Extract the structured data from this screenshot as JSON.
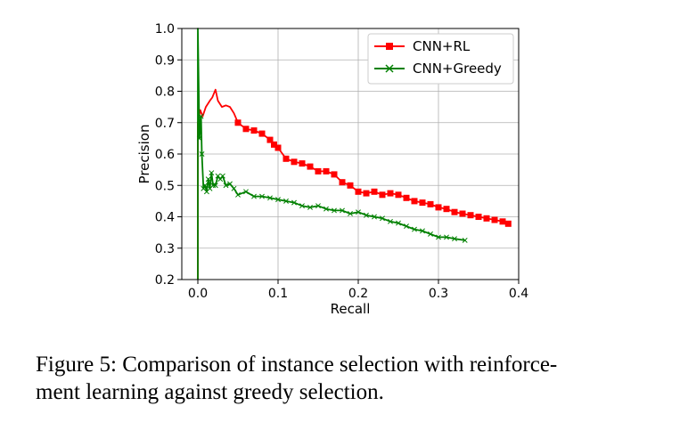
{
  "chart_data": {
    "type": "line",
    "title": "",
    "xlabel": "Recall",
    "ylabel": "Precision",
    "xlim": [
      -0.02,
      0.4
    ],
    "ylim": [
      0.2,
      1.0
    ],
    "xticks": [
      0.0,
      0.1,
      0.2,
      0.3,
      0.4
    ],
    "xtick_labels": [
      "0.0",
      "0.1",
      "0.2",
      "0.3",
      "0.4"
    ],
    "yticks": [
      0.2,
      0.3,
      0.4,
      0.5,
      0.6,
      0.7,
      0.8,
      0.9,
      1.0
    ],
    "ytick_labels": [
      "0.2",
      "0.3",
      "0.4",
      "0.5",
      "0.6",
      "0.7",
      "0.8",
      "0.9",
      "1.0"
    ],
    "grid": true,
    "legend_position": "top-right",
    "series": [
      {
        "name": "CNN+RL",
        "color": "#ff0000",
        "marker": "square",
        "x": [
          0.0,
          0.0,
          0.003,
          0.006,
          0.01,
          0.015,
          0.018,
          0.022,
          0.025,
          0.03,
          0.035,
          0.04,
          0.045,
          0.05,
          0.06,
          0.07,
          0.08,
          0.09,
          0.095,
          0.1,
          0.11,
          0.12,
          0.13,
          0.14,
          0.15,
          0.16,
          0.17,
          0.18,
          0.19,
          0.2,
          0.21,
          0.22,
          0.23,
          0.24,
          0.25,
          0.26,
          0.27,
          0.28,
          0.29,
          0.3,
          0.31,
          0.32,
          0.33,
          0.34,
          0.35,
          0.36,
          0.37,
          0.38,
          0.387
        ],
        "y": [
          0.2,
          0.7,
          0.74,
          0.72,
          0.75,
          0.77,
          0.78,
          0.805,
          0.77,
          0.75,
          0.755,
          0.75,
          0.73,
          0.7,
          0.68,
          0.675,
          0.665,
          0.645,
          0.63,
          0.62,
          0.585,
          0.575,
          0.57,
          0.56,
          0.545,
          0.545,
          0.535,
          0.51,
          0.5,
          0.48,
          0.475,
          0.48,
          0.47,
          0.475,
          0.47,
          0.46,
          0.45,
          0.445,
          0.44,
          0.43,
          0.425,
          0.415,
          0.41,
          0.405,
          0.4,
          0.395,
          0.39,
          0.385,
          0.378
        ]
      },
      {
        "name": "CNN+Greedy",
        "color": "#008000",
        "marker": "x",
        "x": [
          0.0,
          0.0,
          0.002,
          0.004,
          0.005,
          0.007,
          0.009,
          0.011,
          0.013,
          0.015,
          0.017,
          0.019,
          0.022,
          0.025,
          0.028,
          0.031,
          0.035,
          0.04,
          0.045,
          0.05,
          0.06,
          0.07,
          0.08,
          0.09,
          0.1,
          0.11,
          0.12,
          0.13,
          0.14,
          0.15,
          0.16,
          0.17,
          0.18,
          0.19,
          0.2,
          0.21,
          0.22,
          0.23,
          0.24,
          0.25,
          0.26,
          0.27,
          0.28,
          0.29,
          0.3,
          0.31,
          0.32,
          0.333
        ],
        "y": [
          0.2,
          1.0,
          0.65,
          0.72,
          0.6,
          0.49,
          0.5,
          0.48,
          0.52,
          0.49,
          0.54,
          0.5,
          0.5,
          0.53,
          0.52,
          0.53,
          0.5,
          0.505,
          0.49,
          0.47,
          0.48,
          0.465,
          0.465,
          0.46,
          0.455,
          0.45,
          0.445,
          0.435,
          0.43,
          0.435,
          0.425,
          0.42,
          0.42,
          0.41,
          0.415,
          0.405,
          0.4,
          0.395,
          0.385,
          0.38,
          0.37,
          0.36,
          0.355,
          0.345,
          0.335,
          0.335,
          0.33,
          0.325
        ]
      }
    ]
  },
  "caption": {
    "line1": "Figure 5: Comparison of instance selection with reinforce-",
    "line2": "ment learning against greedy selection."
  }
}
